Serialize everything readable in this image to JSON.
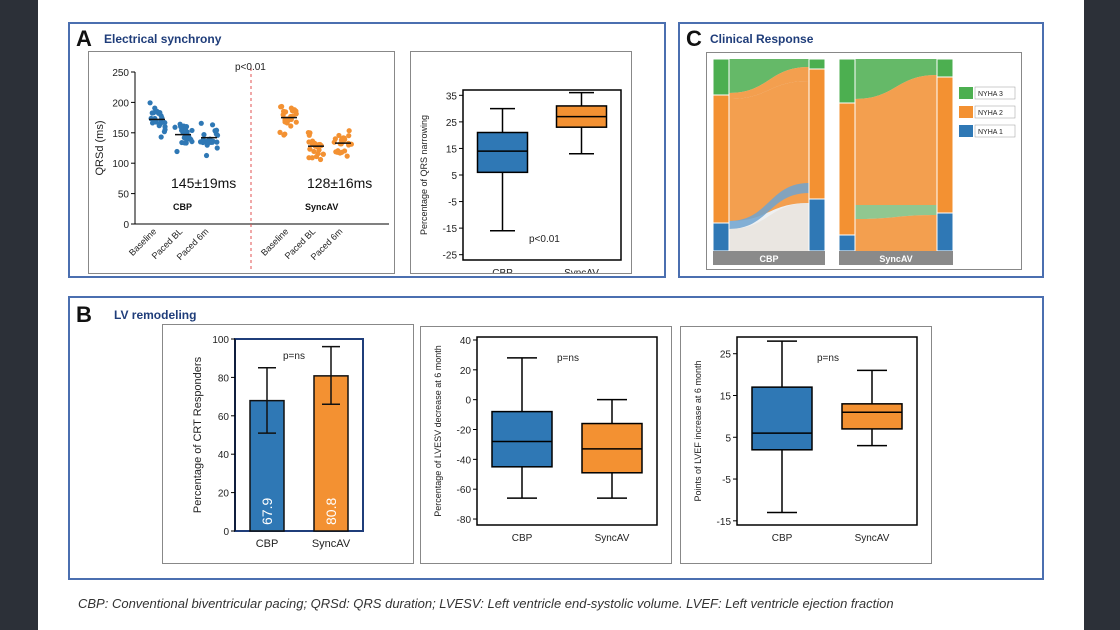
{
  "caption": "CBP: Conventional biventricular pacing; QRSd: QRS duration; LVESV: Left ventricle end-systolic volume. LVEF: Left ventricle ejection fraction",
  "panels": {
    "A": {
      "letter": "A",
      "title": "Electrical synchrony"
    },
    "B": {
      "letter": "B",
      "title": "LV remodeling"
    },
    "C": {
      "letter": "C",
      "title": "Clinical Response"
    }
  },
  "colors": {
    "cbp": "#2f78b5",
    "syncav": "#f39132",
    "green": "#4caf50",
    "divider": "#e05050"
  },
  "chart_data": [
    {
      "id": "qrsd-scatter",
      "type": "scatter",
      "ylabel": "QRSd (ms)",
      "ylim": [
        0,
        250
      ],
      "yticks": [
        "0",
        "50",
        "100",
        "150",
        "200",
        "250"
      ],
      "categories": [
        "Baseline",
        "Paced BL",
        "Paced 6m"
      ],
      "pvalue": "p<0.01",
      "groups": [
        {
          "name": "CBP",
          "summary": "145±19ms",
          "medians": [
            172,
            147,
            142
          ]
        },
        {
          "name": "SyncAV",
          "summary": "128±16ms",
          "medians": [
            175,
            128,
            133
          ]
        }
      ]
    },
    {
      "id": "qrs-narrowing-box",
      "type": "box",
      "ylabel": "Percentage of QRS narrowing",
      "ylim": [
        -27,
        37
      ],
      "yticks": [
        "-25",
        "-15",
        "-5",
        "5",
        "15",
        "25",
        "35"
      ],
      "pvalue": "p<0.01",
      "boxes": [
        {
          "name": "CBP",
          "min": -16,
          "q1": 6,
          "median": 14,
          "q3": 21,
          "max": 30
        },
        {
          "name": "SyncAV",
          "min": 13,
          "q1": 23,
          "median": 27,
          "q3": 31,
          "max": 36
        }
      ]
    },
    {
      "id": "crt-responders-bar",
      "type": "bar",
      "ylabel": "Percentage of CRT Responders",
      "ylim": [
        0,
        100
      ],
      "yticks": [
        "0",
        "20",
        "40",
        "60",
        "80",
        "100"
      ],
      "pvalue": "p=ns",
      "categories": [
        "CBP",
        "SyncAV"
      ],
      "values": [
        67.9,
        80.8
      ],
      "value_labels": [
        "67.9",
        "80.8"
      ],
      "err_low": [
        51,
        66
      ],
      "err_high": [
        85,
        96
      ]
    },
    {
      "id": "lvesv-box",
      "type": "box",
      "ylabel": "Percentage of LVESV decrease at 6 month",
      "ylim": [
        -84,
        42
      ],
      "yticks": [
        "-80",
        "-60",
        "-40",
        "-20",
        "0",
        "20",
        "40"
      ],
      "pvalue": "p=ns",
      "boxes": [
        {
          "name": "CBP",
          "min": -66,
          "q1": -45,
          "median": -28,
          "q3": -8,
          "max": 28
        },
        {
          "name": "SyncAV",
          "min": -66,
          "q1": -49,
          "median": -33,
          "q3": -16,
          "max": 0
        }
      ]
    },
    {
      "id": "lvef-box",
      "type": "box",
      "ylabel": "Points of LVEF increase at 6 month",
      "ylim": [
        -16,
        29
      ],
      "yticks": [
        "-15",
        "-5",
        "5",
        "15",
        "25"
      ],
      "pvalue": "p=ns",
      "boxes": [
        {
          "name": "CBP",
          "min": -13,
          "q1": 2,
          "median": 6,
          "q3": 17,
          "max": 28
        },
        {
          "name": "SyncAV",
          "min": 3,
          "q1": 7,
          "median": 11,
          "q3": 13,
          "max": 21
        }
      ]
    },
    {
      "id": "nyha-sankey",
      "type": "sankey",
      "legend": [
        "NYHA 3",
        "NYHA 2",
        "NYHA 1"
      ],
      "groups": [
        "CBP",
        "SyncAV"
      ]
    }
  ]
}
